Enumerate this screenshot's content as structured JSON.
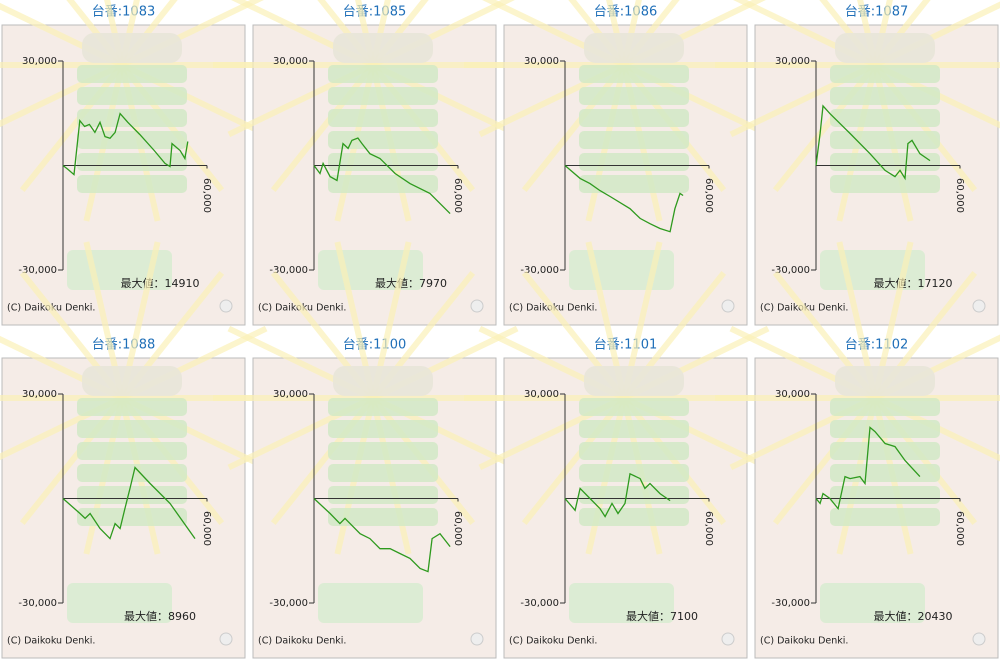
{
  "chart_data": [
    {
      "type": "line",
      "title": "台番:1083",
      "color": "#2e9a1e",
      "xlim": [
        0,
        60000
      ],
      "ylim": [
        -30000,
        30000
      ],
      "yticks": [
        {
          "value": 30000,
          "label": "30,000"
        },
        {
          "value": -30000,
          "label": "-30,000"
        }
      ],
      "xticks": [
        {
          "value": 60000,
          "label": "60,000"
        }
      ],
      "x": [
        0,
        2000,
        4600,
        7000,
        9000,
        11000,
        13300,
        15400,
        17500,
        19600,
        21700,
        23800,
        27000,
        32000,
        38000,
        42500,
        44600,
        45400,
        48800,
        50800,
        52000
      ],
      "values": [
        0,
        -1100,
        -2600,
        12900,
        11200,
        11800,
        9500,
        12400,
        8300,
        7800,
        9500,
        14900,
        12400,
        8900,
        4300,
        600,
        -300,
        6300,
        4300,
        2000,
        6900
      ],
      "annotation": "最大値：14910",
      "credit": "(C) Daikoku Denki."
    },
    {
      "type": "line",
      "title": "台番:1085",
      "color": "#2e9a1e",
      "xlim": [
        0,
        60000
      ],
      "ylim": [
        -30000,
        30000
      ],
      "yticks": [
        {
          "value": 30000,
          "label": "30,000"
        },
        {
          "value": -30000,
          "label": "-30,000"
        }
      ],
      "xticks": [
        {
          "value": 60000,
          "label": "60,000"
        }
      ],
      "x": [
        0,
        2500,
        3800,
        6700,
        9600,
        12100,
        14200,
        15800,
        18300,
        20000,
        23300,
        27500,
        33800,
        40000,
        48300,
        56700
      ],
      "values": [
        0,
        -2300,
        600,
        -3200,
        -4300,
        6300,
        4900,
        7200,
        7900,
        6300,
        3400,
        2000,
        -2300,
        -5200,
        -8000,
        -13800
      ],
      "annotation": "最大値：7970",
      "credit": "(C) Daikoku Denki."
    },
    {
      "type": "line",
      "title": "台番:1086",
      "color": "#2e9a1e",
      "xlim": [
        0,
        60000
      ],
      "ylim": [
        -30000,
        30000
      ],
      "yticks": [
        {
          "value": 30000,
          "label": "30,000"
        },
        {
          "value": -30000,
          "label": "-30,000"
        }
      ],
      "xticks": [
        {
          "value": 60000,
          "label": "60,000"
        }
      ],
      "x": [
        0,
        6300,
        10400,
        14600,
        18800,
        27100,
        31300,
        35400,
        39600,
        43800,
        45800,
        47900,
        49200
      ],
      "values": [
        0,
        -3700,
        -5200,
        -7200,
        -8900,
        -12400,
        -15200,
        -16700,
        -18100,
        -19000,
        -12400,
        -8000,
        -8600
      ],
      "credit": "(C) Daikoku Denki."
    },
    {
      "type": "line",
      "title": "台番:1087",
      "color": "#2e9a1e",
      "xlim": [
        0,
        60000
      ],
      "ylim": [
        -30000,
        30000
      ],
      "yticks": [
        {
          "value": 30000,
          "label": "30,000"
        },
        {
          "value": -30000,
          "label": "-30,000"
        }
      ],
      "xticks": [
        {
          "value": 60000,
          "label": "60,000"
        }
      ],
      "x": [
        0,
        1700,
        2900,
        5800,
        14200,
        22500,
        28800,
        32900,
        35000,
        37100,
        38300,
        40000,
        43300,
        47500
      ],
      "values": [
        0,
        9200,
        17100,
        14900,
        9200,
        3400,
        -1400,
        -3200,
        -1400,
        -3700,
        6300,
        7200,
        3400,
        1400
      ],
      "annotation": "最大値：17120",
      "credit": "(C) Daikoku Denki."
    },
    {
      "type": "line",
      "title": "台番:1088",
      "color": "#2e9a1e",
      "xlim": [
        0,
        60000
      ],
      "ylim": [
        -30000,
        30000
      ],
      "yticks": [
        {
          "value": 30000,
          "label": "30,000"
        },
        {
          "value": -30000,
          "label": "-30,000"
        }
      ],
      "xticks": [
        {
          "value": 60000,
          "label": "60,000"
        }
      ],
      "x": [
        0,
        7100,
        9200,
        11300,
        15400,
        19600,
        21700,
        23800,
        25800,
        27900,
        30000,
        36300,
        44600,
        55000
      ],
      "values": [
        0,
        -4300,
        -5700,
        -4300,
        -8600,
        -11500,
        -7200,
        -8600,
        -2900,
        2900,
        8900,
        4300,
        -1400,
        -11500
      ],
      "annotation": "最大値：8960",
      "credit": "(C) Daikoku Denki."
    },
    {
      "type": "line",
      "title": "台番:1100",
      "color": "#2e9a1e",
      "xlim": [
        0,
        60000
      ],
      "ylim": [
        -30000,
        30000
      ],
      "yticks": [
        {
          "value": 30000,
          "label": "30,000"
        },
        {
          "value": -30000,
          "label": "-30,000"
        }
      ],
      "xticks": [
        {
          "value": 60000,
          "label": "60,000"
        }
      ],
      "x": [
        0,
        6700,
        10800,
        12900,
        19200,
        23300,
        27500,
        31700,
        35800,
        40000,
        44200,
        47500,
        49200,
        52500,
        56700
      ],
      "values": [
        0,
        -4300,
        -7200,
        -5700,
        -10100,
        -11500,
        -14400,
        -14400,
        -15800,
        -17200,
        -20100,
        -21000,
        -11500,
        -10100,
        -13800
      ],
      "credit": "(C) Daikoku Denki."
    },
    {
      "type": "line",
      "title": "台番:1101",
      "color": "#2e9a1e",
      "xlim": [
        0,
        60000
      ],
      "ylim": [
        -30000,
        30000
      ],
      "yticks": [
        {
          "value": 30000,
          "label": "30,000"
        },
        {
          "value": -30000,
          "label": "-30,000"
        }
      ],
      "xticks": [
        {
          "value": 60000,
          "label": "60,000"
        }
      ],
      "x": [
        0,
        4200,
        6300,
        10400,
        14600,
        16700,
        19600,
        22100,
        25000,
        27100,
        31300,
        33300,
        35400,
        39600,
        43800
      ],
      "values": [
        0,
        -3400,
        2900,
        0,
        -2900,
        -5200,
        -1400,
        -4300,
        -1400,
        7100,
        5700,
        2900,
        4300,
        1400,
        -600
      ],
      "annotation": "最大値：7100",
      "credit": "(C) Daikoku Denki."
    },
    {
      "type": "line",
      "title": "台番:1102",
      "color": "#2e9a1e",
      "xlim": [
        0,
        60000
      ],
      "ylim": [
        -30000,
        30000
      ],
      "yticks": [
        {
          "value": 30000,
          "label": "30,000"
        },
        {
          "value": -30000,
          "label": "-30,000"
        }
      ],
      "xticks": [
        {
          "value": 60000,
          "label": "60,000"
        }
      ],
      "x": [
        0,
        1700,
        2900,
        5800,
        9200,
        12100,
        14200,
        18300,
        20400,
        22500,
        24600,
        28800,
        32900,
        37100,
        43300
      ],
      "values": [
        0,
        -1400,
        1400,
        0,
        -2900,
        6300,
        5700,
        6300,
        4300,
        20400,
        19200,
        15800,
        14900,
        10900,
        6300
      ],
      "annotation": "最大値：20430",
      "credit": "(C) Daikoku Denki."
    }
  ]
}
